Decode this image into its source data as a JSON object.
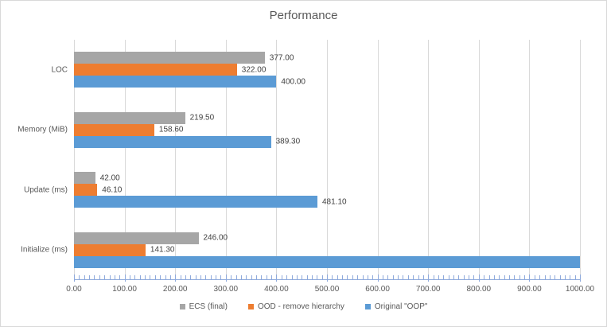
{
  "title": "Performance",
  "colors": {
    "gridline": "#D9D9D9",
    "chart_border": "#D9D9D9",
    "axis": "#8FAADC",
    "title_text": "#595959",
    "axis_text": "#595959",
    "data_label_text": "#404040",
    "series_gray": "#A6A6A6",
    "series_orange": "#ED7D31",
    "series_blue": "#5B9BD5"
  },
  "chart_data": {
    "type": "bar",
    "orientation": "horizontal",
    "title": "Performance",
    "categories": [
      "LOC",
      "Memory (MiB)",
      "Update (ms)",
      "Initialize (ms)"
    ],
    "series": [
      {
        "name": "ECS (final)",
        "color": "#A6A6A6",
        "values": [
          377.0,
          219.5,
          42.0,
          246.0
        ],
        "value_labels": [
          "377.00",
          "219.50",
          "42.00",
          "246.00"
        ]
      },
      {
        "name": "OOD - remove hierarchy",
        "color": "#ED7D31",
        "values": [
          322.0,
          158.6,
          46.1,
          141.3
        ],
        "value_labels": [
          "322.00",
          "158.60",
          "46.10",
          "141.30"
        ]
      },
      {
        "name": "Original \"OOP\"",
        "color": "#5B9BD5",
        "values": [
          400.0,
          389.3,
          481.1,
          1000.0
        ],
        "value_labels": [
          "400.00",
          "389.30",
          "481.10",
          null
        ]
      }
    ],
    "xlim": [
      0,
      1000
    ],
    "x_major_tick_interval": 100,
    "x_minor_tick_interval": 10,
    "x_tick_labels": [
      "0.00",
      "100.00",
      "200.00",
      "300.00",
      "400.00",
      "500.00",
      "600.00",
      "700.00",
      "800.00",
      "900.00",
      "1000.00"
    ],
    "grid": true,
    "legend_position": "bottom"
  }
}
